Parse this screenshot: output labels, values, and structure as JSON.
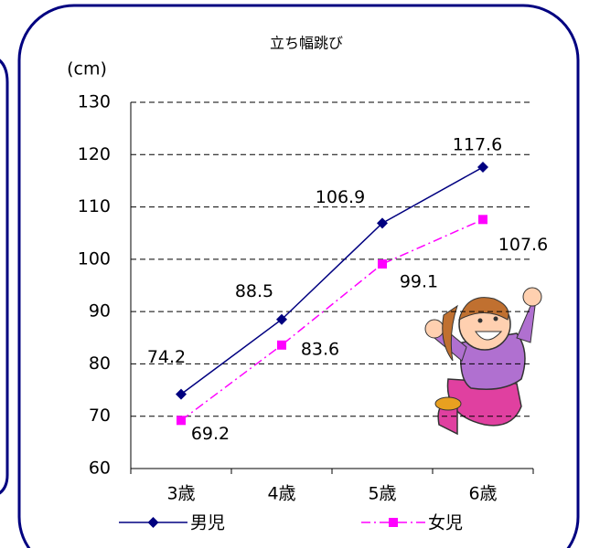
{
  "chart_data": {
    "type": "line",
    "title": "立ち幅跳び",
    "y_axis_label": "(cm)",
    "categories": [
      "3歳",
      "4歳",
      "5歳",
      "6歳"
    ],
    "series": [
      {
        "name": "男児",
        "color": "#000080",
        "marker": "diamond",
        "dash": "solid",
        "values": [
          74.2,
          88.5,
          106.9,
          117.6
        ]
      },
      {
        "name": "女児",
        "color": "#ff00ff",
        "marker": "square",
        "dash": "dashdot",
        "values": [
          69.2,
          83.6,
          99.1,
          107.6
        ]
      }
    ],
    "ylim": [
      60,
      130
    ],
    "yticks": [
      60,
      70,
      80,
      90,
      100,
      110,
      120,
      130
    ],
    "grid": true,
    "legend": "bottom"
  }
}
